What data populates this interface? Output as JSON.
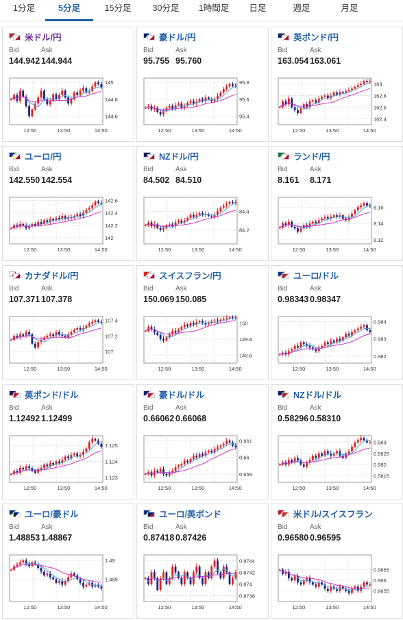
{
  "tabs": [
    {
      "label": "1分足",
      "active": false
    },
    {
      "label": "5分足",
      "active": true
    },
    {
      "label": "15分足",
      "active": false
    },
    {
      "label": "30分足",
      "active": false
    },
    {
      "label": "1時間足",
      "active": false
    },
    {
      "label": "日足",
      "active": false
    },
    {
      "label": "週足",
      "active": false
    },
    {
      "label": "月足",
      "active": false
    }
  ],
  "bid_label": "Bid",
  "ask_label": "Ask",
  "colors": {
    "accent": "#1f5fa8",
    "up_candle": "#e02020",
    "down_candle": "#1a237e",
    "moving_avg": "#cc33cc",
    "short_avg": "#4aa3df",
    "usd_jpy_name": "#6a2c91"
  },
  "pairs": [
    {
      "name": "米ドル/円",
      "bid": "144.942",
      "ask": "144.944",
      "flags": [
        "us",
        "jp"
      ]
    },
    {
      "name": "豪ドル/円",
      "bid": "95.755",
      "ask": "95.760",
      "flags": [
        "au",
        "jp"
      ]
    },
    {
      "name": "英ポンド/円",
      "bid": "163.054",
      "ask": "163.061",
      "flags": [
        "gb",
        "jp"
      ]
    },
    {
      "name": "ユーロ/円",
      "bid": "142.550",
      "ask": "142.554",
      "flags": [
        "eu",
        "jp"
      ]
    },
    {
      "name": "NZドル/円",
      "bid": "84.502",
      "ask": "84.510",
      "flags": [
        "nz",
        "jp"
      ]
    },
    {
      "name": "ランド/円",
      "bid": "8.161",
      "ask": "8.171",
      "flags": [
        "za",
        "jp"
      ]
    },
    {
      "name": "カナダドル/円",
      "bid": "107.371",
      "ask": "107.378",
      "flags": [
        "ca",
        "jp"
      ]
    },
    {
      "name": "スイスフラン/円",
      "bid": "150.069",
      "ask": "150.085",
      "flags": [
        "ch",
        "jp"
      ]
    },
    {
      "name": "ユーロ/ドル",
      "bid": "0.98343",
      "ask": "0.98347",
      "flags": [
        "eu",
        "us"
      ]
    },
    {
      "name": "英ポンド/ドル",
      "bid": "1.12492",
      "ask": "1.12499",
      "flags": [
        "gb",
        "us"
      ]
    },
    {
      "name": "豪ドル/ドル",
      "bid": "0.66062",
      "ask": "0.66068",
      "flags": [
        "au",
        "us"
      ]
    },
    {
      "name": "NZドル/ドル",
      "bid": "0.58296",
      "ask": "0.58310",
      "flags": [
        "nz",
        "us"
      ]
    },
    {
      "name": "ユーロ/豪ドル",
      "bid": "1.48853",
      "ask": "1.48867",
      "flags": [
        "eu",
        "au"
      ]
    },
    {
      "name": "ユーロ/英ポンド",
      "bid": "0.87418",
      "ask": "0.87426",
      "flags": [
        "eu",
        "gb"
      ]
    },
    {
      "name": "米ドル/スイスフラン",
      "bid": "0.96580",
      "ask": "0.96595",
      "flags": [
        "us",
        "ch"
      ]
    }
  ],
  "chart_data": [
    {
      "type": "candlestick",
      "pair": "米ドル/円",
      "x_ticks": [
        "12:50",
        "13:50",
        "14:50"
      ],
      "y_ticks": [
        "145",
        "144.8",
        "144.6"
      ],
      "ylim": [
        144.5,
        145.05
      ],
      "close": [
        144.8,
        144.85,
        144.78,
        144.9,
        144.83,
        144.72,
        144.6,
        144.68,
        144.75,
        144.82,
        144.9,
        144.8,
        144.74,
        144.78,
        144.86,
        144.8,
        144.85,
        144.9,
        144.82,
        144.75,
        144.8,
        144.88,
        144.85,
        144.9,
        144.93,
        144.88,
        144.9,
        144.95,
        145.0,
        144.98,
        144.94
      ]
    },
    {
      "type": "candlestick",
      "pair": "豪ドル/円",
      "x_ticks": [
        "12:50",
        "13:50",
        "14:50"
      ],
      "y_ticks": [
        "95.8",
        "95.6",
        "95.4"
      ],
      "ylim": [
        95.3,
        95.85
      ],
      "close": [
        95.5,
        95.52,
        95.48,
        95.5,
        95.45,
        95.42,
        95.46,
        95.5,
        95.52,
        95.49,
        95.53,
        95.55,
        95.5,
        95.52,
        95.56,
        95.58,
        95.55,
        95.57,
        95.6,
        95.58,
        95.62,
        95.6,
        95.58,
        95.6,
        95.64,
        95.68,
        95.72,
        95.75,
        95.78,
        95.76,
        95.755
      ]
    },
    {
      "type": "candlestick",
      "pair": "英ポンド/円",
      "x_ticks": [
        "12:50",
        "13:50",
        "14:50"
      ],
      "y_ticks": [
        "163",
        "162.8",
        "162.6",
        "162.4"
      ],
      "ylim": [
        162.3,
        163.1
      ],
      "close": [
        162.6,
        162.7,
        162.65,
        162.75,
        162.6,
        162.55,
        162.5,
        162.58,
        162.65,
        162.6,
        162.7,
        162.72,
        162.68,
        162.75,
        162.78,
        162.8,
        162.76,
        162.8,
        162.85,
        162.82,
        162.86,
        162.84,
        162.88,
        162.9,
        162.92,
        162.95,
        162.98,
        163.0,
        163.05,
        163.03,
        163.05
      ]
    },
    {
      "type": "candlestick",
      "pair": "ユーロ/円",
      "x_ticks": [
        "12:50",
        "13:50",
        "14:50"
      ],
      "y_ticks": [
        "142.6",
        "142.4",
        "142.2",
        "142"
      ],
      "ylim": [
        141.9,
        142.65
      ],
      "close": [
        142.15,
        142.2,
        142.18,
        142.22,
        142.2,
        142.15,
        142.18,
        142.22,
        142.2,
        142.25,
        142.22,
        142.28,
        142.25,
        142.3,
        142.28,
        142.32,
        142.3,
        142.35,
        142.3,
        142.33,
        142.32,
        142.35,
        142.38,
        142.35,
        142.4,
        142.45,
        142.48,
        142.52,
        142.58,
        142.56,
        142.55
      ]
    },
    {
      "type": "candlestick",
      "pair": "NZドル/円",
      "x_ticks": [
        "12:50",
        "13:50",
        "14:50"
      ],
      "y_ticks": [
        "84.4",
        "84.2"
      ],
      "ylim": [
        84.05,
        84.55
      ],
      "close": [
        84.25,
        84.28,
        84.24,
        84.26,
        84.22,
        84.2,
        84.22,
        84.25,
        84.26,
        84.24,
        84.28,
        84.3,
        84.28,
        84.3,
        84.33,
        84.36,
        84.34,
        84.36,
        84.38,
        84.36,
        84.37,
        84.35,
        84.34,
        84.36,
        84.4,
        84.44,
        84.46,
        84.48,
        84.5,
        84.49,
        84.5
      ]
    },
    {
      "type": "candlestick",
      "pair": "ランド/円",
      "x_ticks": [
        "12:50",
        "13:50",
        "14:50"
      ],
      "y_ticks": [
        "8.16",
        "8.14",
        "8.12"
      ],
      "ylim": [
        8.115,
        8.172
      ],
      "close": [
        8.135,
        8.14,
        8.138,
        8.142,
        8.136,
        8.134,
        8.13,
        8.134,
        8.138,
        8.136,
        8.14,
        8.142,
        8.14,
        8.144,
        8.146,
        8.148,
        8.146,
        8.148,
        8.15,
        8.148,
        8.15,
        8.146,
        8.144,
        8.148,
        8.152,
        8.156,
        8.16,
        8.162,
        8.165,
        8.162,
        8.161
      ]
    },
    {
      "type": "candlestick",
      "pair": "カナダドル/円",
      "x_ticks": [
        "12:50",
        "13:50",
        "14:50"
      ],
      "y_ticks": [
        "107.4",
        "107.2",
        "107"
      ],
      "ylim": [
        106.85,
        107.45
      ],
      "close": [
        107.15,
        107.2,
        107.18,
        107.22,
        107.2,
        107.25,
        107.22,
        107.1,
        107.05,
        107.12,
        107.15,
        107.18,
        107.2,
        107.22,
        107.2,
        107.25,
        107.22,
        107.2,
        107.18,
        107.22,
        107.25,
        107.28,
        107.3,
        107.28,
        107.3,
        107.33,
        107.36,
        107.38,
        107.4,
        107.38,
        107.37
      ]
    },
    {
      "type": "candlestick",
      "pair": "スイスフラン/円",
      "x_ticks": [
        "12:50",
        "13:50",
        "14:50"
      ],
      "y_ticks": [
        "150",
        "149.8",
        "149.6"
      ],
      "ylim": [
        149.5,
        150.08
      ],
      "close": [
        149.9,
        149.95,
        149.92,
        149.88,
        149.85,
        149.8,
        149.78,
        149.82,
        149.86,
        149.9,
        149.88,
        149.92,
        149.95,
        149.98,
        149.96,
        150.0,
        149.98,
        150.01,
        150.02,
        150.0,
        149.98,
        150.0,
        150.02,
        150.03,
        150.02,
        150.04,
        150.05,
        150.06,
        150.07,
        150.06,
        150.07
      ]
    },
    {
      "type": "candlestick",
      "pair": "ユーロ/ドル",
      "x_ticks": [
        "12:50",
        "13:50",
        "14:50"
      ],
      "y_ticks": [
        "0.984",
        "0.983",
        "0.982"
      ],
      "ylim": [
        0.9816,
        0.9843
      ],
      "close": [
        0.9821,
        0.9822,
        0.9821,
        0.9823,
        0.9824,
        0.9826,
        0.9825,
        0.9828,
        0.9827,
        0.9826,
        0.9825,
        0.9824,
        0.9823,
        0.9825,
        0.9826,
        0.9828,
        0.9827,
        0.9829,
        0.9828,
        0.983,
        0.9829,
        0.9831,
        0.9833,
        0.9832,
        0.9834,
        0.9835,
        0.9836,
        0.9837,
        0.9838,
        0.9835,
        0.9834
      ]
    },
    {
      "type": "candlestick",
      "pair": "英ポンド/ドル",
      "x_ticks": [
        "12:50",
        "13:50",
        "14:50"
      ],
      "y_ticks": [
        "1.125",
        "1.124",
        "1.123"
      ],
      "ylim": [
        1.1227,
        1.1256
      ],
      "close": [
        1.1232,
        1.1234,
        1.1233,
        1.1236,
        1.1235,
        1.1237,
        1.1236,
        1.1234,
        1.1233,
        1.1235,
        1.1236,
        1.1238,
        1.1237,
        1.1239,
        1.1238,
        1.124,
        1.1239,
        1.1241,
        1.1243,
        1.1242,
        1.1244,
        1.1245,
        1.1243,
        1.1244,
        1.1246,
        1.1248,
        1.1252,
        1.1254,
        1.1253,
        1.1251,
        1.1249
      ]
    },
    {
      "type": "candlestick",
      "pair": "豪ドル/ドル",
      "x_ticks": [
        "12:50",
        "13:50",
        "14:50"
      ],
      "y_ticks": [
        "0.661",
        "0.66",
        "0.659"
      ],
      "ylim": [
        0.6585,
        0.6613
      ],
      "close": [
        0.659,
        0.6591,
        0.6589,
        0.6592,
        0.6591,
        0.6593,
        0.659,
        0.6589,
        0.6591,
        0.6592,
        0.6594,
        0.6595,
        0.6596,
        0.6598,
        0.6597,
        0.6599,
        0.6601,
        0.66,
        0.6602,
        0.6601,
        0.6603,
        0.6604,
        0.6603,
        0.6605,
        0.6606,
        0.6607,
        0.6608,
        0.661,
        0.6609,
        0.6607,
        0.6606
      ]
    },
    {
      "type": "candlestick",
      "pair": "NZドル/ドル",
      "x_ticks": [
        "12:50",
        "13:50",
        "14:50"
      ],
      "y_ticks": [
        "0.583",
        "0.5825",
        "0.582",
        "0.5815"
      ],
      "ylim": [
        0.5812,
        0.5833
      ],
      "close": [
        0.582,
        0.5821,
        0.582,
        0.5822,
        0.5821,
        0.5823,
        0.5822,
        0.582,
        0.5819,
        0.5821,
        0.5822,
        0.5824,
        0.5823,
        0.5825,
        0.5824,
        0.5826,
        0.5825,
        0.5824,
        0.5825,
        0.5826,
        0.5824,
        0.5823,
        0.5825,
        0.5826,
        0.5828,
        0.583,
        0.5831,
        0.5832,
        0.5831,
        0.583,
        0.583
      ]
    },
    {
      "type": "candlestick",
      "pair": "ユーロ/豪ドル",
      "x_ticks": [
        "12:50",
        "13:50",
        "14:50"
      ],
      "y_ticks": [
        "1.49",
        "1.489"
      ],
      "ylim": [
        1.4878,
        1.4903
      ],
      "close": [
        1.4895,
        1.4897,
        1.4898,
        1.4899,
        1.49,
        1.4898,
        1.4897,
        1.4899,
        1.4898,
        1.4896,
        1.4894,
        1.4892,
        1.4893,
        1.4891,
        1.489,
        1.4888,
        1.4889,
        1.4887,
        1.4889,
        1.4891,
        1.4893,
        1.4892,
        1.489,
        1.4888,
        1.4886,
        1.4887,
        1.4888,
        1.4886,
        1.4887,
        1.4886,
        1.4885
      ]
    },
    {
      "type": "candlestick",
      "pair": "ユーロ/英ポンド",
      "x_ticks": [
        "12:50",
        "13:50",
        "14:50"
      ],
      "y_ticks": [
        "0.8744",
        "0.8742",
        "0.874",
        "0.8738"
      ],
      "ylim": [
        0.8737,
        0.8745
      ],
      "close": [
        0.8741,
        0.874,
        0.8742,
        0.8741,
        0.8739,
        0.8741,
        0.8742,
        0.874,
        0.8741,
        0.8743,
        0.8742,
        0.8741,
        0.874,
        0.8742,
        0.8741,
        0.874,
        0.8742,
        0.8743,
        0.8741,
        0.874,
        0.8742,
        0.8741,
        0.8743,
        0.8744,
        0.8742,
        0.8741,
        0.8743,
        0.8742,
        0.874,
        0.8741,
        0.8742
      ]
    },
    {
      "type": "candlestick",
      "pair": "米ドル/スイスフラン",
      "x_ticks": [
        "12:50",
        "13:50",
        "14:50"
      ],
      "y_ticks": [
        "0.9665",
        "0.966",
        "0.9655"
      ],
      "ylim": [
        0.965,
        0.9672
      ],
      "close": [
        0.9665,
        0.9663,
        0.9664,
        0.9661,
        0.966,
        0.9662,
        0.9659,
        0.9658,
        0.966,
        0.9661,
        0.9659,
        0.9658,
        0.9657,
        0.9659,
        0.9658,
        0.9656,
        0.9655,
        0.9657,
        0.9656,
        0.9655,
        0.9657,
        0.9656,
        0.9655,
        0.9654,
        0.9656,
        0.9657,
        0.9655,
        0.9657,
        0.9659,
        0.9658,
        0.9658
      ]
    }
  ]
}
